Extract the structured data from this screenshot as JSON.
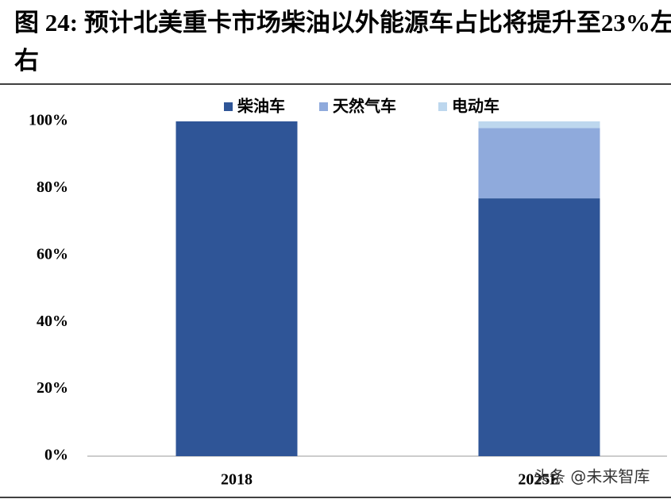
{
  "chart_data": {
    "type": "stacked-bar",
    "title": "图 24: 预计北美重卡市场柴油以外能源车占比将提升至23%左右",
    "categories": [
      "2018",
      "2025E"
    ],
    "series": [
      {
        "name": "柴油车",
        "color": "#2f5597",
        "values": [
          100,
          77
        ]
      },
      {
        "name": "天然气车",
        "color": "#8faadc",
        "values": [
          0,
          21
        ]
      },
      {
        "name": "电动车",
        "color": "#bdd7ee",
        "values": [
          0,
          2
        ]
      }
    ],
    "ylim": [
      0,
      100
    ],
    "yticks": [
      {
        "value": 0,
        "label": "0%"
      },
      {
        "value": 20,
        "label": "20%"
      },
      {
        "value": 40,
        "label": "40%"
      },
      {
        "value": 60,
        "label": "60%"
      },
      {
        "value": 80,
        "label": "80%"
      },
      {
        "value": 100,
        "label": "100%"
      }
    ],
    "legend": "top",
    "watermark": "头条 @未来智库"
  }
}
